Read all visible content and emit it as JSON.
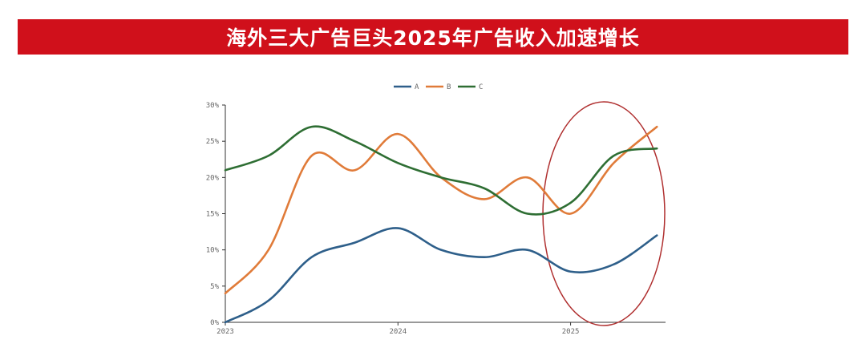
{
  "header": {
    "title": "海外三大广告巨头2025年广告收入加速增长",
    "background": "#d0101b"
  },
  "chart_data": {
    "type": "line",
    "x": [
      2023.0,
      2023.25,
      2023.5,
      2023.75,
      2024.0,
      2024.25,
      2024.5,
      2024.75,
      2025.0,
      2025.25,
      2025.5
    ],
    "x_ticks": [
      {
        "value": 2023,
        "label": "2023"
      },
      {
        "value": 2024,
        "label": "2024"
      },
      {
        "value": 2025,
        "label": "2025"
      }
    ],
    "xlim": [
      2023.0,
      2025.55
    ],
    "y_ticks": [
      {
        "value": 0,
        "label": "0%"
      },
      {
        "value": 5,
        "label": "5%"
      },
      {
        "value": 10,
        "label": "10%"
      },
      {
        "value": 15,
        "label": "15%"
      },
      {
        "value": 20,
        "label": "20%"
      },
      {
        "value": 25,
        "label": "25%"
      },
      {
        "value": 30,
        "label": "30%"
      }
    ],
    "ylim": [
      0,
      30
    ],
    "series": [
      {
        "name": "A",
        "color": "#2e5f8a",
        "values": [
          0,
          3,
          9,
          11,
          13,
          10,
          9,
          10,
          7,
          8,
          12
        ]
      },
      {
        "name": "B",
        "color": "#e07b39",
        "values": [
          4,
          10,
          23,
          21,
          26,
          20,
          17,
          20,
          15,
          22,
          27
        ]
      },
      {
        "name": "C",
        "color": "#2e6e33",
        "values": [
          21,
          23,
          27,
          25,
          22,
          20,
          18.5,
          15,
          16.5,
          23,
          24
        ]
      }
    ],
    "legend_position": "top-center",
    "grid": false,
    "highlight": {
      "shape": "ellipse",
      "color": "#b03030",
      "x_range": [
        2024.9,
        2025.55
      ]
    }
  }
}
